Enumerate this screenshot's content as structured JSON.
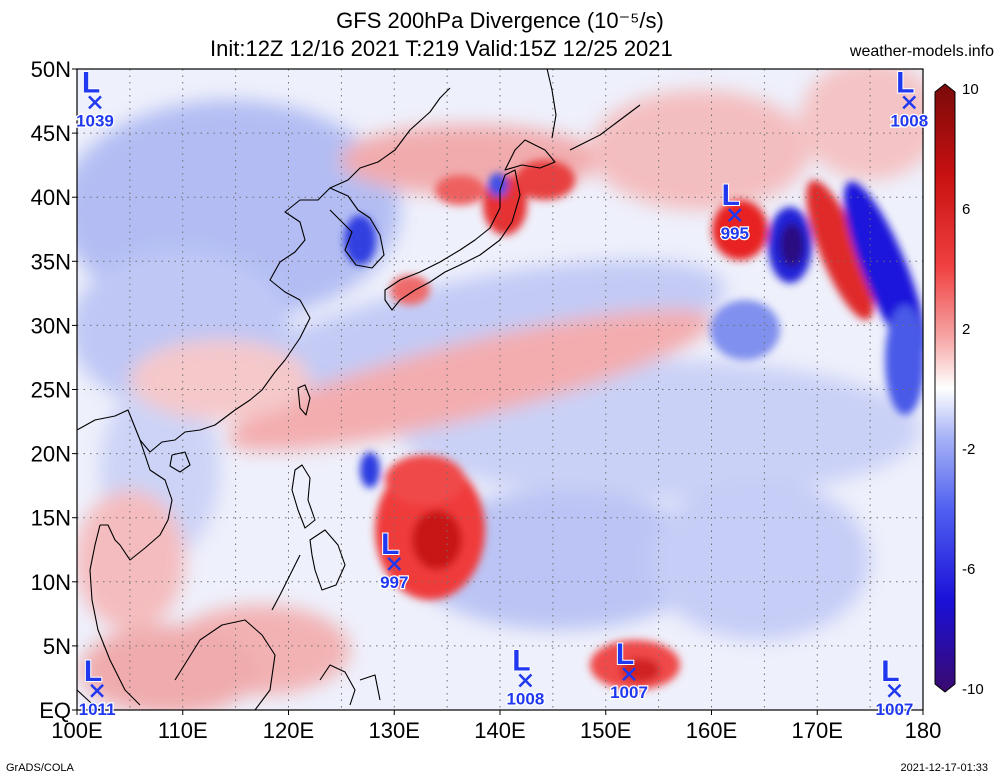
{
  "title": {
    "line1": "GFS 200hPa Divergence (10⁻⁵/s)",
    "line2": "Init:12Z 12/16 2021 T:219 Valid:15Z 12/25 2021",
    "site": "weather-models.info"
  },
  "footer": {
    "left": "GrADS/COLA",
    "right": "2021-12-17-01:33"
  },
  "axes": {
    "lat_labels": [
      "50N",
      "45N",
      "40N",
      "35N",
      "30N",
      "25N",
      "20N",
      "15N",
      "10N",
      "5N",
      "EQ"
    ],
    "lat_values": [
      50,
      45,
      40,
      35,
      30,
      25,
      20,
      15,
      10,
      5,
      0
    ],
    "lon_labels": [
      "100E",
      "110E",
      "120E",
      "130E",
      "140E",
      "150E",
      "160E",
      "170E",
      "180"
    ],
    "lon_values": [
      100,
      110,
      120,
      130,
      140,
      150,
      160,
      170,
      180
    ]
  },
  "colorbar": {
    "labels": [
      "10",
      "6",
      "2",
      "-2",
      "-6",
      "-10"
    ],
    "values": [
      10,
      6,
      2,
      -2,
      -6,
      -10
    ],
    "colors": [
      "#3a0a6e",
      "#1a10d8",
      "#5060f0",
      "#a8b4f6",
      "#ffffff",
      "#f6a8a8",
      "#f04040",
      "#c81010",
      "#7a0a0a"
    ]
  },
  "lows": [
    {
      "label": "L",
      "pressure": "1039",
      "lon": 101.7,
      "lat": 47.4
    },
    {
      "label": "L",
      "pressure": "1008",
      "lon": 178.7,
      "lat": 47.4
    },
    {
      "label": "L",
      "pressure": "995",
      "lon": 162.2,
      "lat": 38.6
    },
    {
      "label": "L",
      "pressure": "997",
      "lon": 130.0,
      "lat": 11.4
    },
    {
      "label": "L",
      "pressure": "1008",
      "lon": 142.4,
      "lat": 2.3
    },
    {
      "label": "L",
      "pressure": "1007",
      "lon": 152.2,
      "lat": 2.8
    },
    {
      "label": "L",
      "pressure": "1011",
      "lon": 101.9,
      "lat": 1.5
    },
    {
      "label": "L",
      "pressure": "1007",
      "lon": 177.3,
      "lat": 1.5
    }
  ]
}
